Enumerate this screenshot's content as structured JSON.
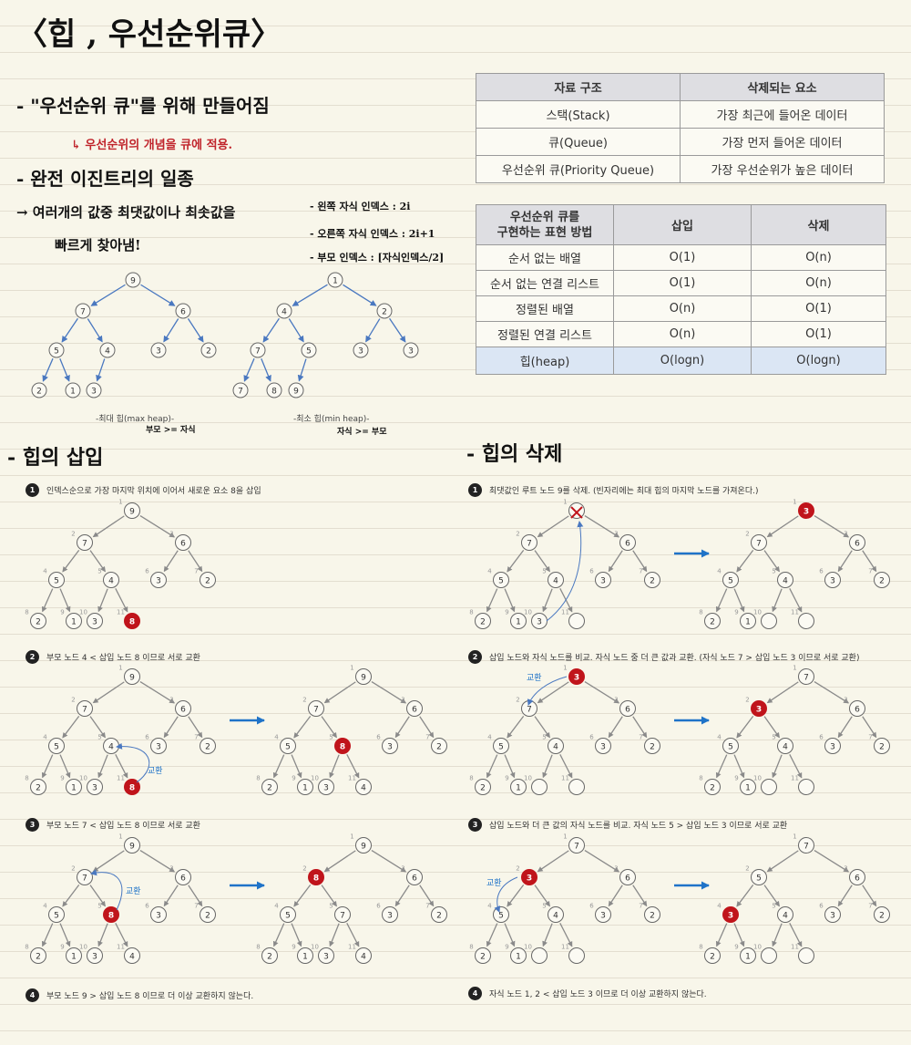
{
  "title": "〈힙 , 우선순위큐〉",
  "notes": {
    "line1": "- \"우선순위 큐\"를 위해 만들어짐",
    "line1_sub": "↳ 우선순위의 개념을 큐에 적용.",
    "line2": "- 완전 이진트리의 일종",
    "line3": "→ 여러개의 값중 최댓값이나 최솟값을",
    "line3b": "빠르게 찾아냄!",
    "idx_left": "- 왼쪽 자식 인덱스 : 2i",
    "idx_right": "- 오른쪽 자식 인덱스 : 2i+1",
    "idx_parent": "- 부모 인덱스 : [자식인덱스/2]"
  },
  "table1": {
    "headers": [
      "자료 구조",
      "삭제되는 요소"
    ],
    "rows": [
      [
        "스택(Stack)",
        "가장 최근에 들어온 데이터"
      ],
      [
        "큐(Queue)",
        "가장 먼저 들어온 데이터"
      ],
      [
        "우선순위 큐(Priority Queue)",
        "가장 우선순위가 높은 데이터"
      ]
    ]
  },
  "table2": {
    "headers": [
      "우선순위 큐를\n구현하는 표현 방법",
      "삽입",
      "삭제"
    ],
    "rows": [
      [
        "순서 없는 배열",
        "O(1)",
        "O(n)"
      ],
      [
        "순서 없는 연결 리스트",
        "O(1)",
        "O(n)"
      ],
      [
        "정렬된 배열",
        "O(n)",
        "O(1)"
      ],
      [
        "정렬된 연결 리스트",
        "O(n)",
        "O(1)"
      ],
      [
        "힙(heap)",
        "O(logn)",
        "O(logn)"
      ]
    ]
  },
  "heaps": {
    "max_caption": "-최대 힙(max heap)-",
    "max_note": "부모 >= 자식",
    "min_caption": "-최소 힙(min heap)-",
    "min_note": "자식 >= 부모"
  },
  "insert": {
    "heading": "- 힙의 삽입",
    "steps": [
      {
        "num": "1",
        "text": "인덱스순으로 가장 마지막 위치에 이어서 새로운 요소 8을 삽입"
      },
      {
        "num": "2",
        "text": "부모 노드 4 < 삽입 노드 8 이므로 서로 교환"
      },
      {
        "num": "3",
        "text": "부모 노드 7 < 삽입 노드 8 이므로 서로 교환"
      },
      {
        "num": "4",
        "text": "부모 노드 9 > 삽입 노드 8 이므로 더 이상 교환하지 않는다."
      }
    ]
  },
  "delete": {
    "heading": "- 힙의 삭제",
    "steps": [
      {
        "num": "1",
        "text": "최댓값인 루트 노드 9를 삭제. (빈자리에는 최대 힙의 마지막 노드를 가져온다.)"
      },
      {
        "num": "2",
        "text": "삽입 노드와 자식 노드를 비교. 자식 노드 중 더 큰 값과 교환. (자식 노드 7 > 삽입 노드 3 이므로 서로 교환)"
      },
      {
        "num": "3",
        "text": "삽입 노드와 더 큰 값의 자식 노드를 비교. 자식 노드 5 > 삽입 노드 3 이므로 서로 교환"
      },
      {
        "num": "4",
        "text": "자식 노드 1, 2 < 삽입 노드 3 이므로 더 이상 교환하지 않는다."
      }
    ]
  },
  "swap_label": "교환",
  "colors": {
    "node_highlight": "#c0141b",
    "arrow_blue": "#1f73c8",
    "tree_blue": "#4a78c0"
  },
  "trees": {
    "max_heap": [
      9,
      7,
      6,
      5,
      4,
      3,
      2,
      2,
      1,
      3
    ],
    "min_heap": [
      1,
      4,
      2,
      7,
      5,
      3,
      3,
      7,
      8,
      9
    ],
    "ins1": [
      9,
      7,
      6,
      5,
      4,
      3,
      2,
      2,
      1,
      3,
      8
    ],
    "ins2_before": [
      9,
      7,
      6,
      5,
      4,
      3,
      2,
      2,
      1,
      3,
      8
    ],
    "ins2_after": [
      9,
      7,
      6,
      5,
      8,
      3,
      2,
      2,
      1,
      3,
      4
    ],
    "ins3_before": [
      9,
      7,
      6,
      5,
      8,
      3,
      2,
      2,
      1,
      3,
      4
    ],
    "ins3_after": [
      9,
      8,
      6,
      5,
      7,
      3,
      2,
      2,
      1,
      3,
      4
    ],
    "del1_before": [
      "",
      7,
      6,
      5,
      4,
      3,
      2,
      2,
      1,
      3
    ],
    "del1_after": [
      3,
      7,
      6,
      5,
      4,
      3,
      2,
      2,
      1
    ],
    "del2_before": [
      3,
      7,
      6,
      5,
      4,
      3,
      2,
      2,
      1
    ],
    "del2_after": [
      7,
      3,
      6,
      5,
      4,
      3,
      2,
      2,
      1
    ],
    "del3_before": [
      7,
      3,
      6,
      5,
      4,
      3,
      2,
      2,
      1
    ],
    "del3_after": [
      7,
      5,
      6,
      3,
      4,
      3,
      2,
      2,
      1
    ]
  }
}
